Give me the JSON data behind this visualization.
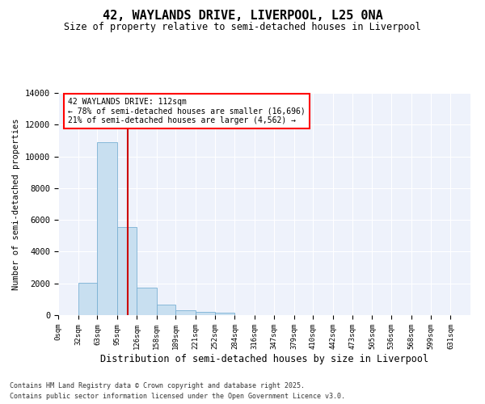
{
  "title_line1": "42, WAYLANDS DRIVE, LIVERPOOL, L25 0NA",
  "title_line2": "Size of property relative to semi-detached houses in Liverpool",
  "xlabel": "Distribution of semi-detached houses by size in Liverpool",
  "ylabel": "Number of semi-detached properties",
  "annotation_title": "42 WAYLANDS DRIVE: 112sqm",
  "annotation_line2": "← 78% of semi-detached houses are smaller (16,696)",
  "annotation_line3": "21% of semi-detached houses are larger (4,562) →",
  "property_size": 112,
  "bin_starts": [
    0,
    32,
    63,
    95,
    126,
    158,
    189,
    221,
    252,
    284,
    316,
    347,
    379,
    410,
    442,
    473,
    505,
    536,
    568,
    599,
    631
  ],
  "bar_values": [
    0,
    2050,
    10900,
    5550,
    1750,
    650,
    320,
    190,
    130,
    0,
    0,
    0,
    0,
    0,
    0,
    0,
    0,
    0,
    0,
    0,
    0
  ],
  "bar_color": "#c8dff0",
  "bar_edge_color": "#7ab0d4",
  "vline_color": "#cc0000",
  "background_color": "#eef2fb",
  "ylim": [
    0,
    14000
  ],
  "yticks": [
    0,
    2000,
    4000,
    6000,
    8000,
    10000,
    12000,
    14000
  ],
  "xlim": [
    0,
    663
  ],
  "footer_line1": "Contains HM Land Registry data © Crown copyright and database right 2025.",
  "footer_line2": "Contains public sector information licensed under the Open Government Licence v3.0.",
  "tick_labels": [
    "0sqm",
    "32sqm",
    "63sqm",
    "95sqm",
    "126sqm",
    "158sqm",
    "189sqm",
    "221sqm",
    "252sqm",
    "284sqm",
    "316sqm",
    "347sqm",
    "379sqm",
    "410sqm",
    "442sqm",
    "473sqm",
    "505sqm",
    "536sqm",
    "568sqm",
    "599sqm",
    "631sqm"
  ]
}
